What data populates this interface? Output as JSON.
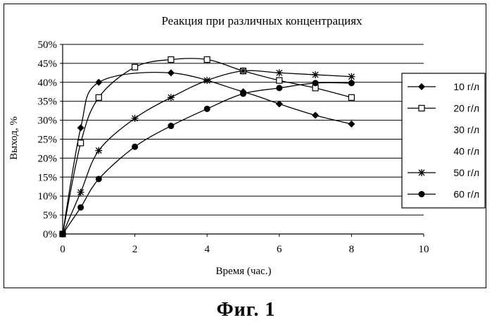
{
  "caption": "Фиг. 1",
  "chart_data": {
    "type": "line",
    "title": "Реакция при различных концентрациях",
    "xlabel": "Время (час.)",
    "ylabel": "Выход, %",
    "xlim": [
      0,
      10
    ],
    "ylim": [
      0,
      0.5
    ],
    "xticks": [
      "0",
      "2",
      "4",
      "6",
      "8",
      "10"
    ],
    "yticks": [
      "0%",
      "5%",
      "10%",
      "15%",
      "20%",
      "25%",
      "30%",
      "35%",
      "40%",
      "45%",
      "50%"
    ],
    "grid": "horizontal",
    "legend_position": "right",
    "series": [
      {
        "name": "10 г/л",
        "marker": "diamond",
        "x": [
          0,
          0.5,
          1,
          3,
          5,
          6,
          7,
          8
        ],
        "y": [
          0,
          0.28,
          0.4,
          0.425,
          0.375,
          0.343,
          0.313,
          0.29
        ]
      },
      {
        "name": "20 г/л",
        "marker": "square-open",
        "x": [
          0,
          0.5,
          1,
          2,
          3,
          4,
          5,
          6,
          7,
          8
        ],
        "y": [
          0,
          0.24,
          0.36,
          0.44,
          0.46,
          0.46,
          0.43,
          0.405,
          0.385,
          0.36
        ]
      },
      {
        "name": "30 г/л",
        "marker": "none",
        "x": [],
        "y": []
      },
      {
        "name": "40 г/л",
        "marker": "none",
        "x": [],
        "y": []
      },
      {
        "name": "50 г/л",
        "marker": "star",
        "x": [
          0,
          0.5,
          1,
          2,
          3,
          4,
          5,
          6,
          7,
          8
        ],
        "y": [
          0,
          0.11,
          0.22,
          0.305,
          0.36,
          0.405,
          0.43,
          0.425,
          0.42,
          0.415
        ]
      },
      {
        "name": "60 г/л",
        "marker": "circle",
        "x": [
          0,
          0.5,
          1,
          2,
          3,
          4,
          5,
          6,
          7,
          8
        ],
        "y": [
          0,
          0.07,
          0.145,
          0.23,
          0.285,
          0.33,
          0.37,
          0.385,
          0.398,
          0.398
        ]
      }
    ]
  }
}
